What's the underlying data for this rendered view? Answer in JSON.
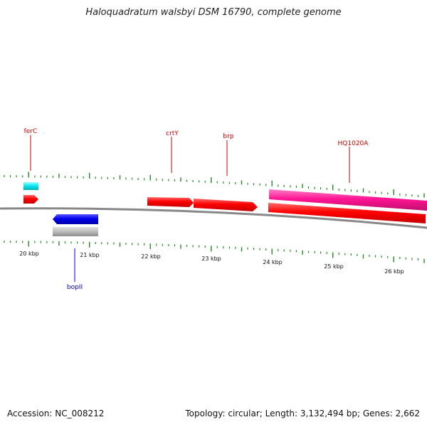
{
  "title": "Haloquadratum walsbyi DSM 16790, complete genome",
  "accession_text": "Accession: NC_008212",
  "topology_text": "Topology: circular; Length: 3,132,494 bp; Genes: 2,662",
  "ticks": [
    "20 kbp",
    "21 kbp",
    "22 kbp",
    "23 kbp",
    "24 kbp",
    "25 kbp",
    "26 kbp"
  ],
  "genes": {
    "ferC": "ferC",
    "crtY": "crtY",
    "brp": "brp",
    "HQ1020A": "HQ1020A",
    "bopII": "bopII"
  },
  "colors": {
    "forward_gene": "#ff0000",
    "forward_label": "#cc0000",
    "reverse_gene": "#0000ee",
    "reverse_label": "#0000cc",
    "pseudo_feature": "#ff1493",
    "trna_feature": "#00e5ee",
    "misc_feature": "#bbbbbb",
    "backbone": "#888888",
    "tick": "#228b22"
  }
}
